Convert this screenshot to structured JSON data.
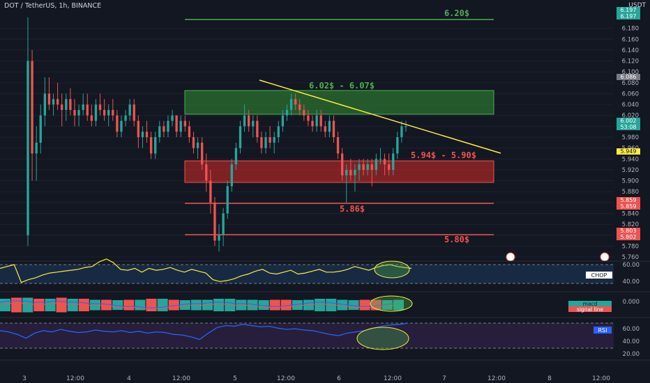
{
  "header": {
    "symbol": "DOT / TetherUS, 1h, BINANCE",
    "quote_currency": "USDT"
  },
  "colors": {
    "background": "#131722",
    "bull": "#26a69a",
    "bear": "#ef5350",
    "grid": "#1e2230",
    "axis_text": "#b2b5be",
    "resistance_zone": "#2e7d32",
    "support_zone": "#c62828",
    "trendline": "#ffeb3b",
    "rsi_line": "#2962ff",
    "chop_line": "#ffeb3b"
  },
  "chart_data": [
    {
      "type": "candlestick",
      "title": "DOT / TetherUS, 1h, BINANCE",
      "ylabel": "USDT",
      "ylim": [
        5.76,
        6.2
      ],
      "yticks": [
        6.18,
        6.16,
        6.14,
        6.12,
        6.1,
        6.08,
        6.06,
        6.04,
        6.02,
        6.0,
        5.98,
        5.96,
        5.94,
        5.92,
        5.9,
        5.88,
        5.86,
        5.84,
        5.82,
        5.8,
        5.78,
        5.76
      ],
      "ytick_labels": [
        "6.180",
        "6.160",
        "6.140",
        "6.120",
        "6.100",
        "6.080",
        "6.060",
        "6.040",
        "6.020",
        "6.000",
        "5.980",
        "5.960",
        "5.940",
        "5.920",
        "5.900",
        "5.880",
        "5.860",
        "5.840",
        "5.820",
        "5.800",
        "5.780",
        "5.760"
      ],
      "xtick_labels": [
        "3",
        "12:00",
        "4",
        "12:00",
        "5",
        "12:00",
        "6",
        "12:00",
        "7",
        "12:00",
        "8",
        "12:00"
      ],
      "candles": [
        [
          5.8,
          6.2,
          5.78,
          6.12
        ],
        [
          6.12,
          6.14,
          5.9,
          5.95
        ],
        [
          5.95,
          6.0,
          5.9,
          5.97
        ],
        [
          5.97,
          6.04,
          5.95,
          6.02
        ],
        [
          6.02,
          6.09,
          6.0,
          6.06
        ],
        [
          6.06,
          6.09,
          6.03,
          6.04
        ],
        [
          6.04,
          6.06,
          6.02,
          6.05
        ],
        [
          6.05,
          6.08,
          6.03,
          6.04
        ],
        [
          6.04,
          6.06,
          6.0,
          6.03
        ],
        [
          6.03,
          6.06,
          6.01,
          6.05
        ],
        [
          6.05,
          6.07,
          6.02,
          6.03
        ],
        [
          6.03,
          6.05,
          6.0,
          6.02
        ],
        [
          6.02,
          6.04,
          6.0,
          6.03
        ],
        [
          6.03,
          6.06,
          6.02,
          6.04
        ],
        [
          6.04,
          6.06,
          6.01,
          6.02
        ],
        [
          6.02,
          6.04,
          6.0,
          6.01
        ],
        [
          6.01,
          6.05,
          6.0,
          6.04
        ],
        [
          6.04,
          6.06,
          6.02,
          6.03
        ],
        [
          6.03,
          6.05,
          6.01,
          6.02
        ],
        [
          6.02,
          6.04,
          6.0,
          6.03
        ],
        [
          6.03,
          6.05,
          6.01,
          6.02
        ],
        [
          6.02,
          6.03,
          5.98,
          5.99
        ],
        [
          5.99,
          6.02,
          5.98,
          6.01
        ],
        [
          6.01,
          6.03,
          6.0,
          6.02
        ],
        [
          6.02,
          6.05,
          6.01,
          6.04
        ],
        [
          6.04,
          6.05,
          6.0,
          6.01
        ],
        [
          6.01,
          6.02,
          5.96,
          5.98
        ],
        [
          5.98,
          6.0,
          5.96,
          5.99
        ],
        [
          5.99,
          6.01,
          5.97,
          5.98
        ],
        [
          5.98,
          5.99,
          5.94,
          5.95
        ],
        [
          5.95,
          5.99,
          5.94,
          5.98
        ],
        [
          5.98,
          6.01,
          5.97,
          6.0
        ],
        [
          6.0,
          6.01,
          5.98,
          5.99
        ],
        [
          5.99,
          6.02,
          5.98,
          6.01
        ],
        [
          6.01,
          6.03,
          6.0,
          6.02
        ],
        [
          6.02,
          6.02,
          5.98,
          5.99
        ],
        [
          5.99,
          6.02,
          5.98,
          6.01
        ],
        [
          6.01,
          6.02,
          5.99,
          6.0
        ],
        [
          6.0,
          6.01,
          5.97,
          5.98
        ],
        [
          5.98,
          5.99,
          5.95,
          5.96
        ],
        [
          5.96,
          5.98,
          5.94,
          5.97
        ],
        [
          5.97,
          5.98,
          5.92,
          5.93
        ],
        [
          5.93,
          5.95,
          5.88,
          5.9
        ],
        [
          5.9,
          5.92,
          5.84,
          5.86
        ],
        [
          5.86,
          5.87,
          5.78,
          5.79
        ],
        [
          5.79,
          5.82,
          5.77,
          5.8
        ],
        [
          5.8,
          5.85,
          5.78,
          5.84
        ],
        [
          5.84,
          5.9,
          5.83,
          5.89
        ],
        [
          5.89,
          5.94,
          5.88,
          5.93
        ],
        [
          5.93,
          5.97,
          5.92,
          5.96
        ],
        [
          5.96,
          6.01,
          5.95,
          6.0
        ],
        [
          6.0,
          6.04,
          5.99,
          6.02
        ],
        [
          6.02,
          6.03,
          5.99,
          6.0
        ],
        [
          6.0,
          6.02,
          5.98,
          6.01
        ],
        [
          6.01,
          6.02,
          5.97,
          5.98
        ],
        [
          5.98,
          5.99,
          5.95,
          5.96
        ],
        [
          5.96,
          5.99,
          5.95,
          5.98
        ],
        [
          5.98,
          6.0,
          5.96,
          5.97
        ],
        [
          5.97,
          5.99,
          5.95,
          5.98
        ],
        [
          5.98,
          6.01,
          5.97,
          6.0
        ],
        [
          6.0,
          6.03,
          5.99,
          6.02
        ],
        [
          6.02,
          6.04,
          6.01,
          6.03
        ],
        [
          6.03,
          6.06,
          6.02,
          6.05
        ],
        [
          6.05,
          6.06,
          6.03,
          6.04
        ],
        [
          6.04,
          6.05,
          6.02,
          6.03
        ],
        [
          6.03,
          6.04,
          6.01,
          6.02
        ],
        [
          6.02,
          6.03,
          6.0,
          6.01
        ],
        [
          6.01,
          6.02,
          5.99,
          6.0
        ],
        [
          6.0,
          6.03,
          5.99,
          6.02
        ],
        [
          6.02,
          6.03,
          5.99,
          6.0
        ],
        [
          6.0,
          6.01,
          5.98,
          5.99
        ],
        [
          5.99,
          6.02,
          5.98,
          6.01
        ],
        [
          6.01,
          6.02,
          5.97,
          5.98
        ],
        [
          5.98,
          5.99,
          5.94,
          5.95
        ],
        [
          5.95,
          5.96,
          5.9,
          5.91
        ],
        [
          5.91,
          5.93,
          5.86,
          5.92
        ],
        [
          5.92,
          5.94,
          5.9,
          5.91
        ],
        [
          5.91,
          5.93,
          5.88,
          5.92
        ],
        [
          5.92,
          5.94,
          5.9,
          5.93
        ],
        [
          5.93,
          5.94,
          5.91,
          5.92
        ],
        [
          5.92,
          5.94,
          5.91,
          5.93
        ],
        [
          5.93,
          5.94,
          5.89,
          5.92
        ],
        [
          5.92,
          5.95,
          5.91,
          5.94
        ],
        [
          5.94,
          5.96,
          5.93,
          5.94
        ],
        [
          5.94,
          5.95,
          5.91,
          5.93
        ],
        [
          5.93,
          5.95,
          5.91,
          5.92
        ],
        [
          5.92,
          5.96,
          5.91,
          5.95
        ],
        [
          5.95,
          5.99,
          5.94,
          5.98
        ],
        [
          5.98,
          6.01,
          5.97,
          6.0
        ],
        [
          6.0,
          6.01,
          5.99,
          6.0
        ]
      ],
      "price_labels": [
        {
          "value": "6.197",
          "color": "#26a69a"
        },
        {
          "value": "6.197",
          "color": "#26a69a"
        },
        {
          "value": "6.086",
          "color": "#787b86"
        },
        {
          "value": "6.002",
          "color": "#26a69a"
        },
        {
          "value": "53:08",
          "color": "#26a69a"
        },
        {
          "value": "5.949",
          "color": "#ffeb3b"
        },
        {
          "value": "5.859",
          "color": "#ef5350"
        },
        {
          "value": "5.859",
          "color": "#ef5350"
        },
        {
          "value": "5.803",
          "color": "#ef5350"
        },
        {
          "value": "5.802",
          "color": "#ef5350"
        }
      ],
      "annotations": {
        "level_620": "6.20$",
        "resistance_zone": "6.02$ - 6.07$",
        "support_zone": "5.94$ - 5.90$",
        "level_586": "5.86$",
        "level_580": "5.80$"
      }
    },
    {
      "type": "line",
      "series": [
        {
          "name": "CHOP",
          "values": [
            56,
            58,
            60,
            41,
            44,
            46,
            49,
            51,
            52,
            53,
            54,
            55,
            57,
            58,
            63,
            66,
            62,
            55,
            54,
            56,
            52,
            56,
            54,
            55,
            57,
            54,
            52,
            55,
            53,
            51,
            44,
            42,
            43,
            45,
            48,
            50,
            53,
            55,
            51,
            50,
            52,
            54,
            50,
            51,
            53,
            55,
            52,
            52,
            53,
            55,
            58,
            56,
            54,
            57,
            59,
            60,
            58,
            57,
            56
          ]
        }
      ],
      "ylim": [
        35,
        65
      ],
      "ytick_labels": [
        "60.00",
        "40.00"
      ],
      "label": "CHOP"
    },
    {
      "type": "bar",
      "series": [
        {
          "name": "macd",
          "values": [
            0.02,
            0.03,
            0.03,
            0.02,
            0.02,
            0.03,
            0.02,
            0.02,
            0.01,
            0.01,
            0.0,
            -0.01,
            -0.01,
            -0.02,
            -0.02,
            -0.01,
            0.0,
            0.01,
            0.01,
            0.02,
            0.02,
            0.01,
            0.01,
            0.0,
            -0.01,
            -0.01,
            0.0,
            0.01,
            0.02,
            0.02,
            0.01,
            0.0,
            -0.01,
            -0.01,
            0.0,
            0.01
          ]
        },
        {
          "name": "signal line",
          "values": []
        }
      ],
      "ytick_labels": [
        "0.000"
      ],
      "legend": [
        "macd",
        "signal line"
      ]
    },
    {
      "type": "line",
      "series": [
        {
          "name": "RSI",
          "values": [
            48,
            46,
            42,
            36,
            44,
            48,
            46,
            50,
            47,
            45,
            46,
            49,
            47,
            46,
            48,
            45,
            47,
            44,
            46,
            45,
            42,
            41,
            38,
            34,
            44,
            53,
            56,
            55,
            58,
            56,
            54,
            55,
            52,
            50,
            51,
            49,
            48,
            45,
            42,
            40,
            44,
            46,
            48,
            52,
            55,
            57,
            58,
            60
          ]
        }
      ],
      "ylim": [
        20,
        70
      ],
      "ytick_labels": [
        "60.00",
        "40.00",
        "20.00"
      ],
      "label": "RSI"
    }
  ]
}
